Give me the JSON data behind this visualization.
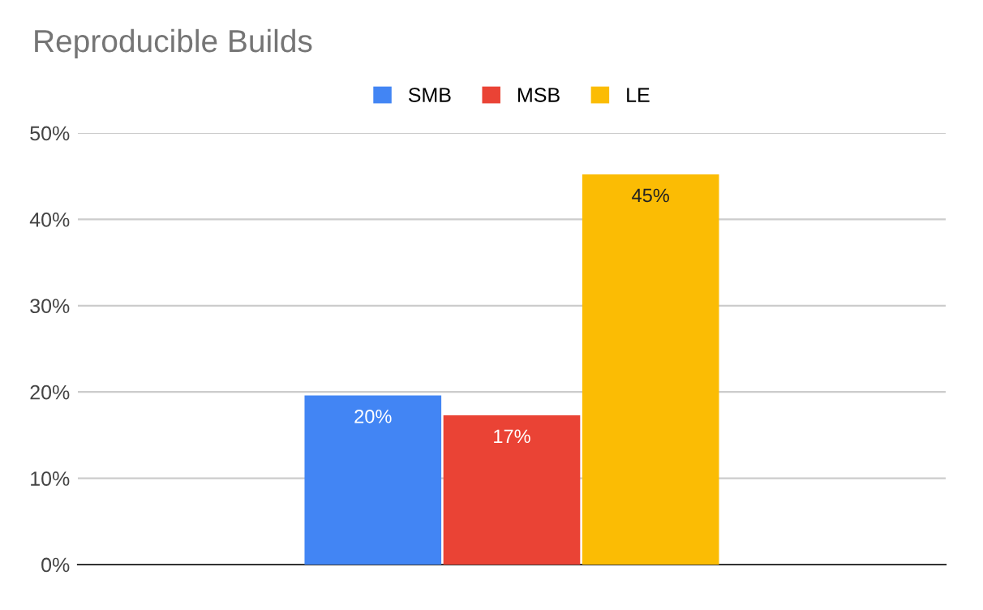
{
  "chart_data": {
    "type": "bar",
    "title": "Reproducible Builds",
    "categories": [
      null
    ],
    "series": [
      {
        "name": "SMB",
        "color": "#4285f4",
        "values": [
          19.6
        ],
        "value_labels": [
          "20%"
        ]
      },
      {
        "name": "MSB",
        "color": "#ea4335",
        "values": [
          17.3
        ],
        "value_labels": [
          "17%"
        ]
      },
      {
        "name": "LE",
        "color": "#fbbc04",
        "values": [
          45.2
        ],
        "value_labels": [
          "45%"
        ]
      }
    ],
    "ylim": [
      0,
      50
    ],
    "yticks": [
      {
        "value": 0,
        "label": "0%"
      },
      {
        "value": 10,
        "label": "10%"
      },
      {
        "value": 20,
        "label": "20%"
      },
      {
        "value": 30,
        "label": "30%"
      },
      {
        "value": 40,
        "label": "40%"
      },
      {
        "value": 50,
        "label": "50%"
      }
    ],
    "grid": "y",
    "legend": "top"
  }
}
